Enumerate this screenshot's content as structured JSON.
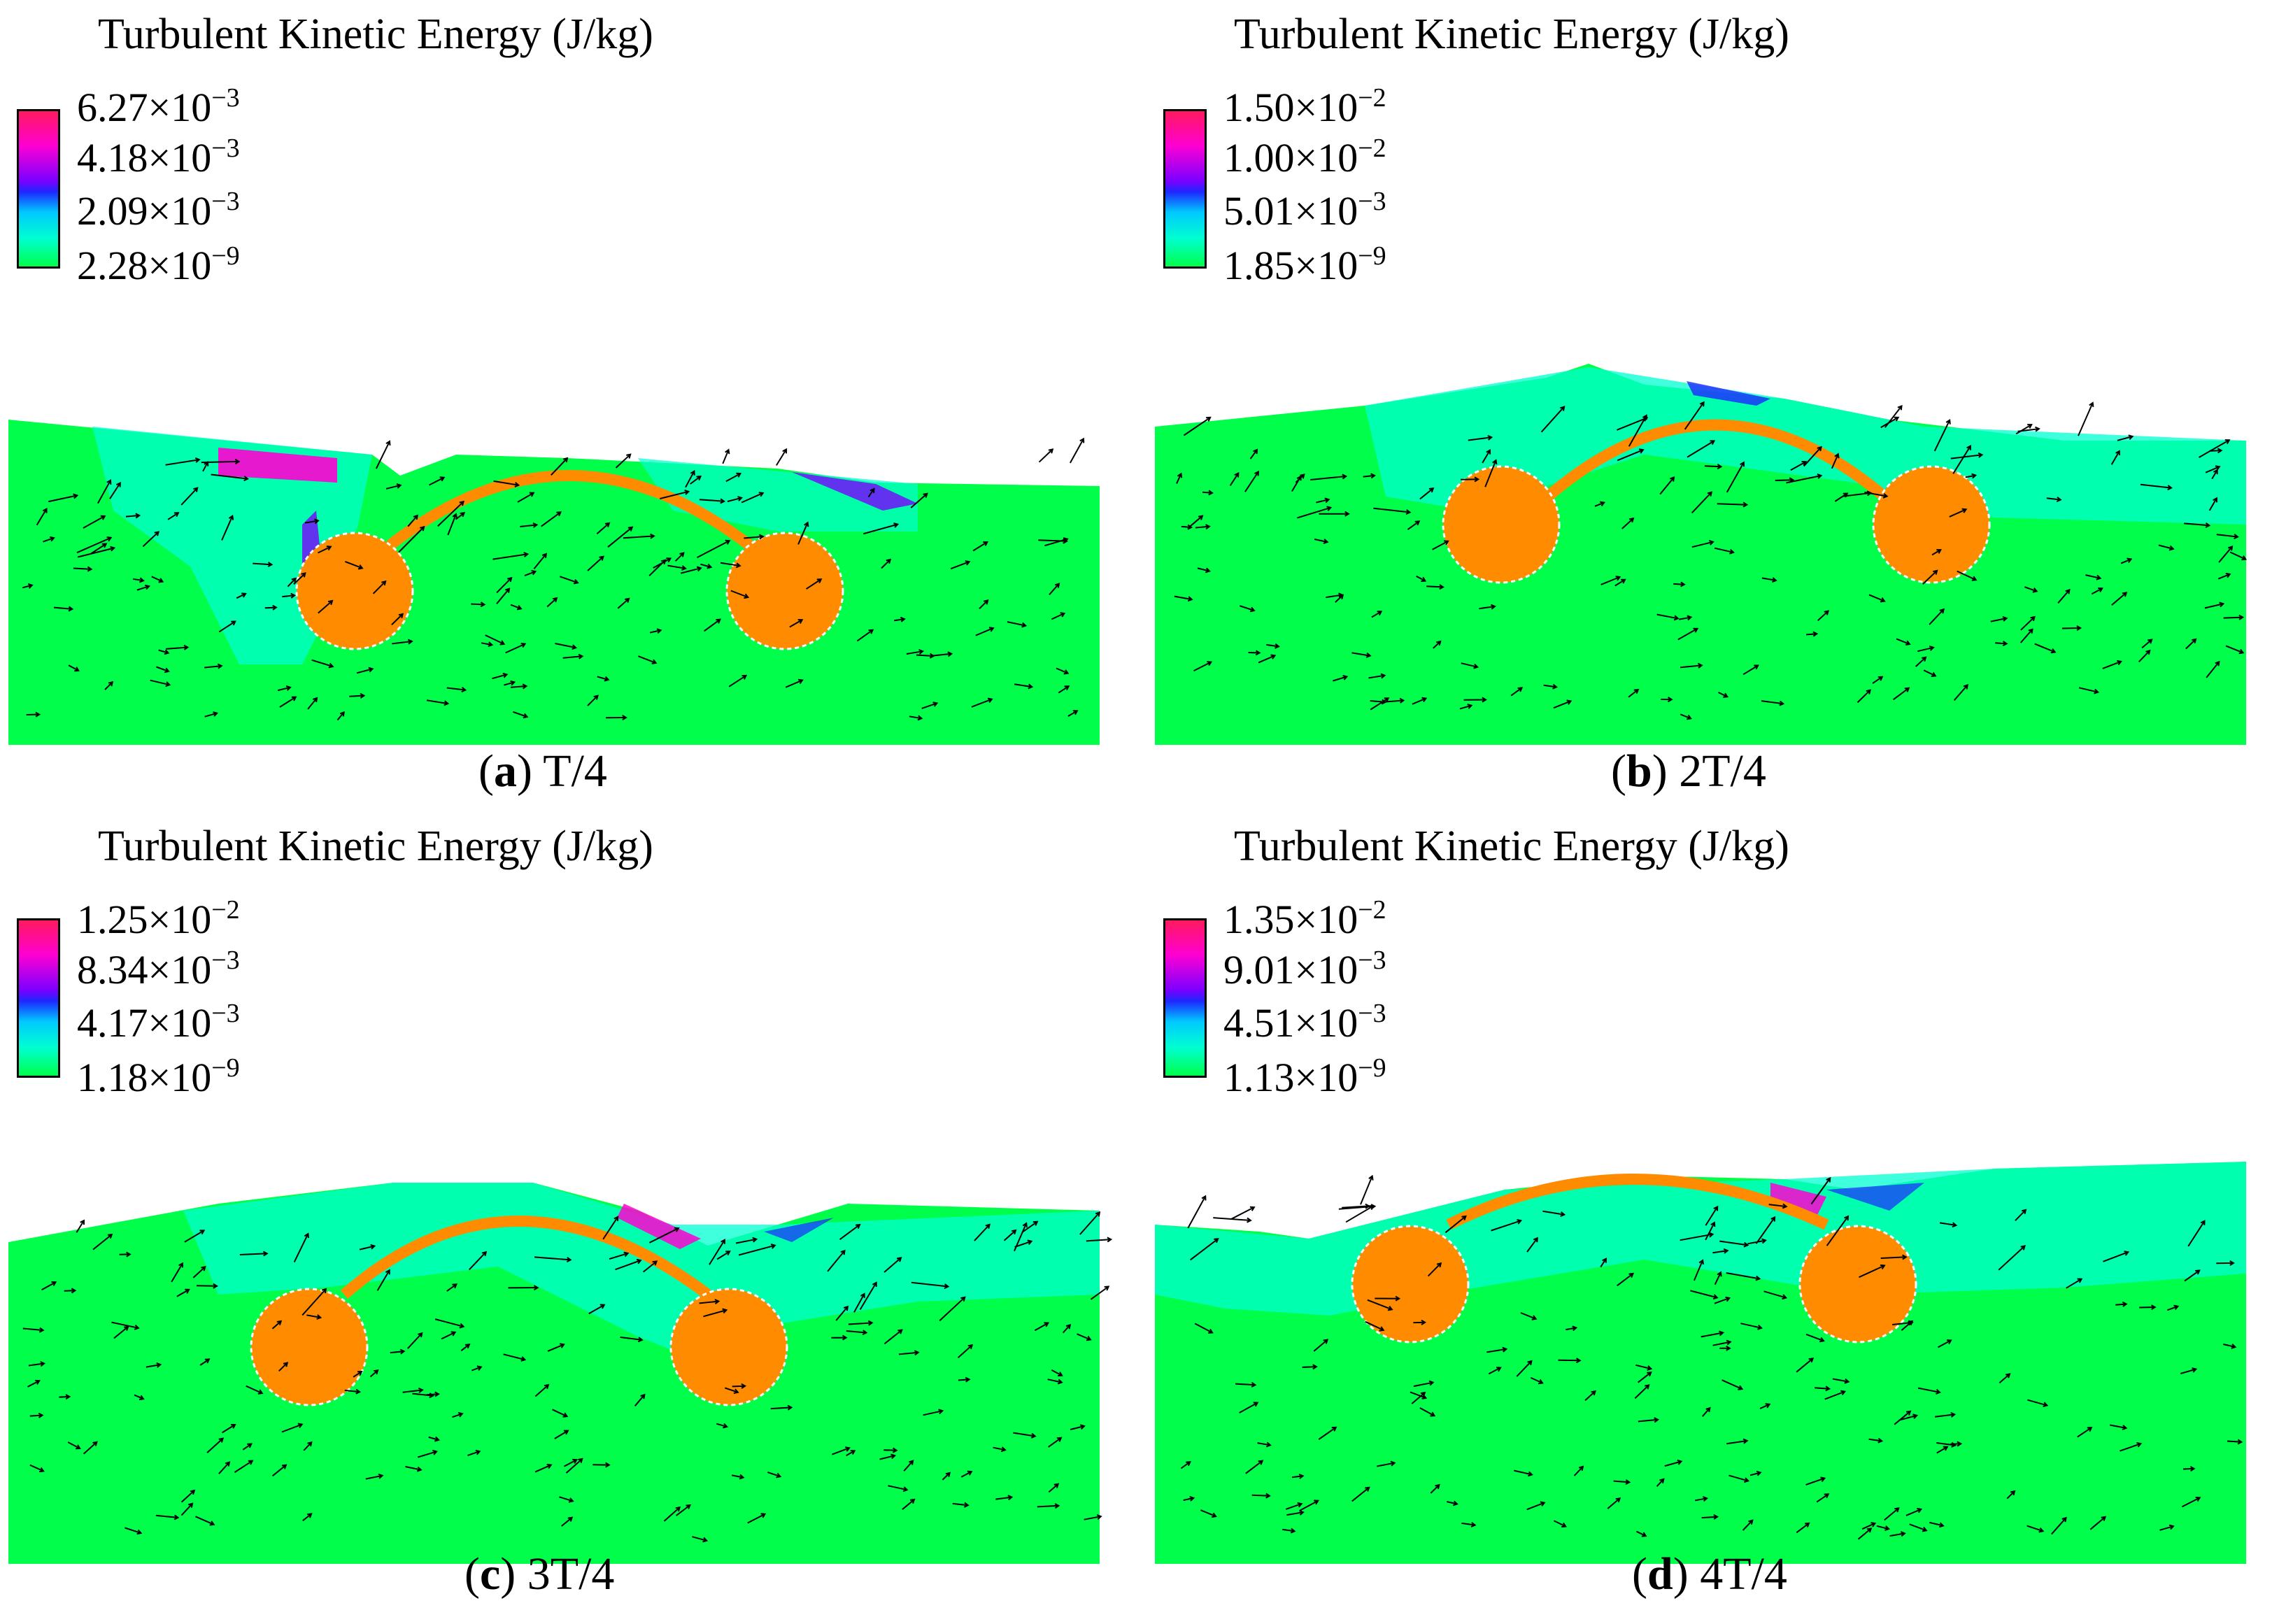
{
  "colors": {
    "low": "#00ff4a",
    "mid_low": "#00ffd0",
    "mid": "#1e28ff",
    "mid_high": "#ff00d2",
    "high": "#ff1a5e",
    "structure": "#ff8c00"
  },
  "panels": [
    {
      "title": "Turbulent Kinetic Energy (J/kg)",
      "ticks": [
        {
          "mant": "6.27×10",
          "exp": "−3"
        },
        {
          "mant": "4.18×10",
          "exp": "−3"
        },
        {
          "mant": "2.09×10",
          "exp": "−3"
        },
        {
          "mant": "2.28×10",
          "exp": "−9"
        }
      ],
      "caption_letter": "a",
      "caption_label": "T/4"
    },
    {
      "title": "Turbulent Kinetic Energy (J/kg)",
      "ticks": [
        {
          "mant": "1.50×10",
          "exp": "−2"
        },
        {
          "mant": "1.00×10",
          "exp": "−2"
        },
        {
          "mant": "5.01×10",
          "exp": "−3"
        },
        {
          "mant": "1.85×10",
          "exp": "−9"
        }
      ],
      "caption_letter": "b",
      "caption_label": "2T/4"
    },
    {
      "title": "Turbulent Kinetic Energy (J/kg)",
      "ticks": [
        {
          "mant": "1.25×10",
          "exp": "−2"
        },
        {
          "mant": "8.34×10",
          "exp": "−3"
        },
        {
          "mant": "4.17×10",
          "exp": "−3"
        },
        {
          "mant": "1.18×10",
          "exp": "−9"
        }
      ],
      "caption_letter": "c",
      "caption_label": "3T/4"
    },
    {
      "title": "Turbulent Kinetic Energy (J/kg)",
      "ticks": [
        {
          "mant": "1.35×10",
          "exp": "−2"
        },
        {
          "mant": "9.01×10",
          "exp": "−3"
        },
        {
          "mant": "4.51×10",
          "exp": "−3"
        },
        {
          "mant": "1.13×10",
          "exp": "−9"
        }
      ],
      "caption_letter": "d",
      "caption_label": "4T/4"
    }
  ]
}
